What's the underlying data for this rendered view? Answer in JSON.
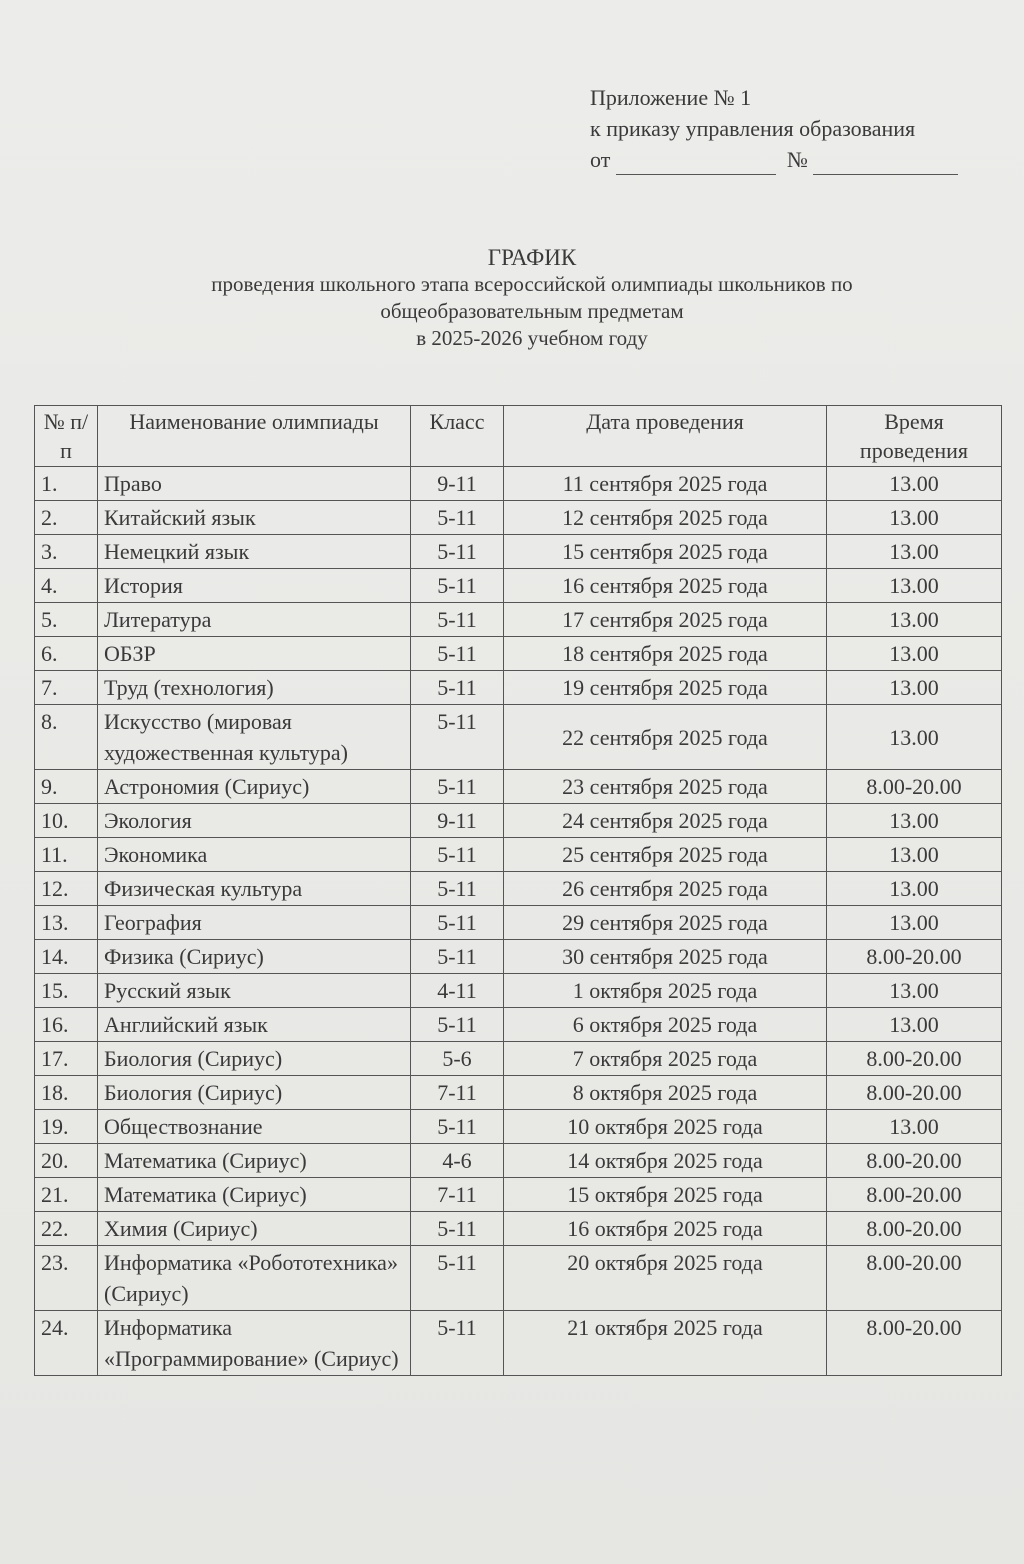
{
  "appendix": {
    "line1": "Приложение № 1",
    "line2": "к приказу управления  образования",
    "date_label": "от",
    "number_label": "№"
  },
  "title": {
    "main": "ГРАФИК",
    "line1": "проведения школьного этапа всероссийской олимпиады школьников по",
    "line2": "общеобразовательным предметам",
    "line3": "в 2025-2026 учебном году"
  },
  "table": {
    "headers": [
      "№ п/п",
      "Наименование олимпиады",
      "Класс",
      "Дата проведения",
      "Время проведения"
    ],
    "rows": [
      [
        "1.",
        "Право",
        "9-11",
        "11 сентября 2025 года",
        "13.00"
      ],
      [
        "2.",
        "Китайский язык",
        "5-11",
        "12 сентября 2025 года",
        "13.00"
      ],
      [
        "3.",
        "Немецкий  язык",
        "5-11",
        "15 сентября 2025 года",
        "13.00"
      ],
      [
        "4.",
        "История",
        "5-11",
        "16 сентября 2025 года",
        "13.00"
      ],
      [
        "5.",
        "Литература",
        "5-11",
        "17 сентября 2025 года",
        "13.00"
      ],
      [
        "6.",
        "ОБЗР",
        "5-11",
        "18 сентября 2025 года",
        "13.00"
      ],
      [
        "7.",
        "Труд (технология)",
        "5-11",
        "19 сентября 2025 года",
        "13.00"
      ],
      [
        "8.",
        "Искусство (мировая художественная культура)",
        "5-11",
        "22 сентября 2025 года",
        "13.00"
      ],
      [
        "9.",
        "Астрономия (Сириус)",
        "5-11",
        "23 сентября 2025 года",
        "8.00-20.00"
      ],
      [
        "10.",
        "Экология",
        "9-11",
        "24 сентября 2025 года",
        "13.00"
      ],
      [
        "11.",
        "Экономика",
        "5-11",
        "25 сентября 2025 года",
        "13.00"
      ],
      [
        "12.",
        "Физическая культура",
        "5-11",
        "26 сентября 2025 года",
        "13.00"
      ],
      [
        "13.",
        "География",
        "5-11",
        "29 сентября 2025 года",
        "13.00"
      ],
      [
        "14.",
        "Физика      (Сириус)",
        "5-11",
        "30 сентября 2025 года",
        "8.00-20.00"
      ],
      [
        "15.",
        "Русский язык",
        "4-11",
        "1 октября 2025 года",
        "13.00"
      ],
      [
        "16.",
        "Английский язык",
        "5-11",
        "6 октября 2025 года",
        "13.00"
      ],
      [
        "17.",
        "Биология    (Сириус)",
        "5-6",
        "7 октября 2025 года",
        "8.00-20.00"
      ],
      [
        "18.",
        "Биология     (Сириус)",
        "7-11",
        "8 октября 2025 года",
        "8.00-20.00"
      ],
      [
        "19.",
        "Обществознание",
        "5-11",
        "10 октября 2025 года",
        "13.00"
      ],
      [
        "20.",
        "Математика  (Сириус)",
        "4-6",
        "14 октября 2025 года",
        "8.00-20.00"
      ],
      [
        "21.",
        "Математика  (Сириус)",
        "7-11",
        "15 октября 2025 года",
        "8.00-20.00"
      ],
      [
        "22.",
        "Химия    (Сириус)",
        "5-11",
        "16 октября 2025 года",
        "8.00-20.00"
      ],
      [
        "23.",
        "Информатика «Робототехника» (Сириус)",
        "5-11",
        "20 октября 2025 года",
        "8.00-20.00"
      ],
      [
        "24.",
        "Информатика «Программирование» (Сириус)",
        "5-11",
        "21 октября 2025 года",
        "8.00-20.00"
      ]
    ]
  }
}
